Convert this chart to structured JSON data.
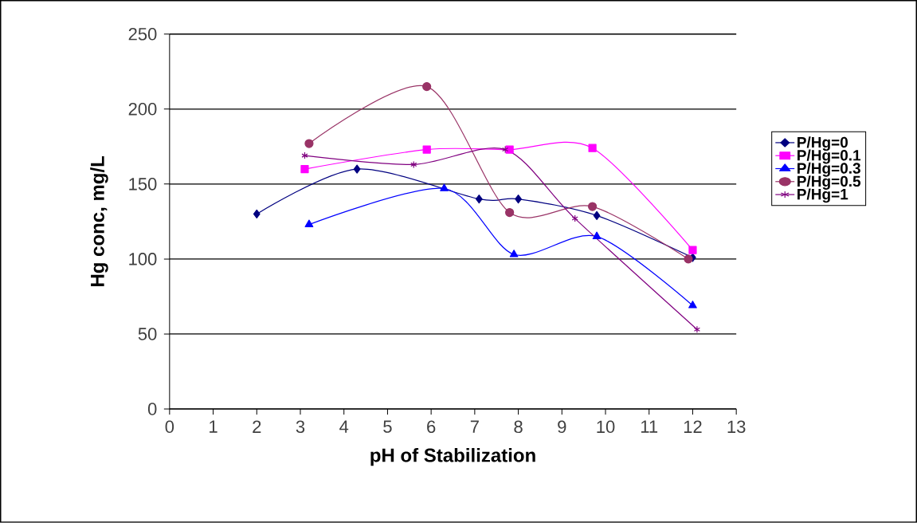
{
  "chart_data": {
    "type": "line",
    "xlabel": "pH of Stabilization",
    "ylabel": "Hg conc, mg/L",
    "xlim": [
      0,
      13
    ],
    "xticks": [
      0,
      1,
      2,
      3,
      4,
      5,
      6,
      7,
      8,
      9,
      10,
      11,
      12,
      13
    ],
    "ylim": [
      0,
      250
    ],
    "yticks": [
      0,
      50,
      100,
      150,
      200,
      250
    ],
    "grid": "y",
    "legend": "right",
    "line_style": "solid",
    "series": [
      {
        "name": "P/Hg=0",
        "color": "#000080",
        "marker": "diamond",
        "x": [
          2.0,
          4.3,
          7.1,
          8.0,
          9.8,
          12.0
        ],
        "values": [
          130,
          160,
          140,
          140,
          129,
          101
        ]
      },
      {
        "name": "P/Hg=0.1",
        "color": "#ff00ff",
        "marker": "square",
        "x": [
          3.1,
          5.9,
          7.8,
          9.7,
          12.0
        ],
        "values": [
          160,
          173,
          173,
          174,
          106
        ]
      },
      {
        "name": "P/Hg=0.3",
        "color": "#0000ff",
        "marker": "triangle",
        "x": [
          3.2,
          6.3,
          7.9,
          9.8,
          12.0
        ],
        "values": [
          123,
          147,
          103,
          115,
          69
        ]
      },
      {
        "name": "P/Hg=0.5",
        "color": "#993366",
        "marker": "circle",
        "x": [
          3.2,
          5.9,
          7.8,
          9.7,
          11.9
        ],
        "values": [
          177,
          215,
          131,
          135,
          100
        ]
      },
      {
        "name": "P/Hg=1",
        "color": "#800080",
        "marker": "cross",
        "x": [
          3.1,
          5.6,
          7.7,
          9.3,
          12.1
        ],
        "values": [
          169,
          163,
          173,
          127,
          53
        ]
      }
    ]
  }
}
